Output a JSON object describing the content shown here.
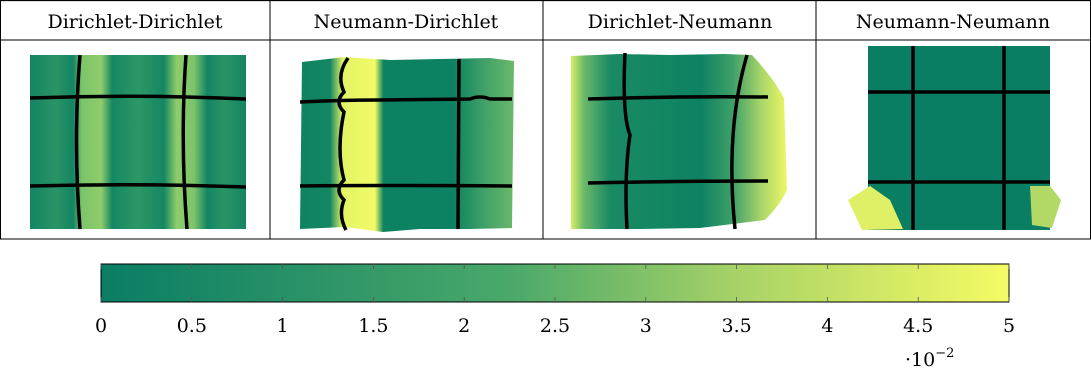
{
  "columns": [
    {
      "label": "Dirichlet-Dirichlet"
    },
    {
      "label": "Neumann-Dirichlet"
    },
    {
      "label": "Dirichlet-Neumann"
    },
    {
      "label": "Neumann-Neumann"
    }
  ],
  "colorbar": {
    "min": 0,
    "max": 5,
    "ticks": [
      "0",
      "0.5",
      "1",
      "1.5",
      "2",
      "2.5",
      "3",
      "3.5",
      "4",
      "4.5",
      "5"
    ],
    "multiplier_base": "·10",
    "multiplier_exponent": "−2",
    "colors": {
      "low": "#0a7d64",
      "mid": "#5fb46a",
      "high": "#f5fb64"
    }
  }
}
